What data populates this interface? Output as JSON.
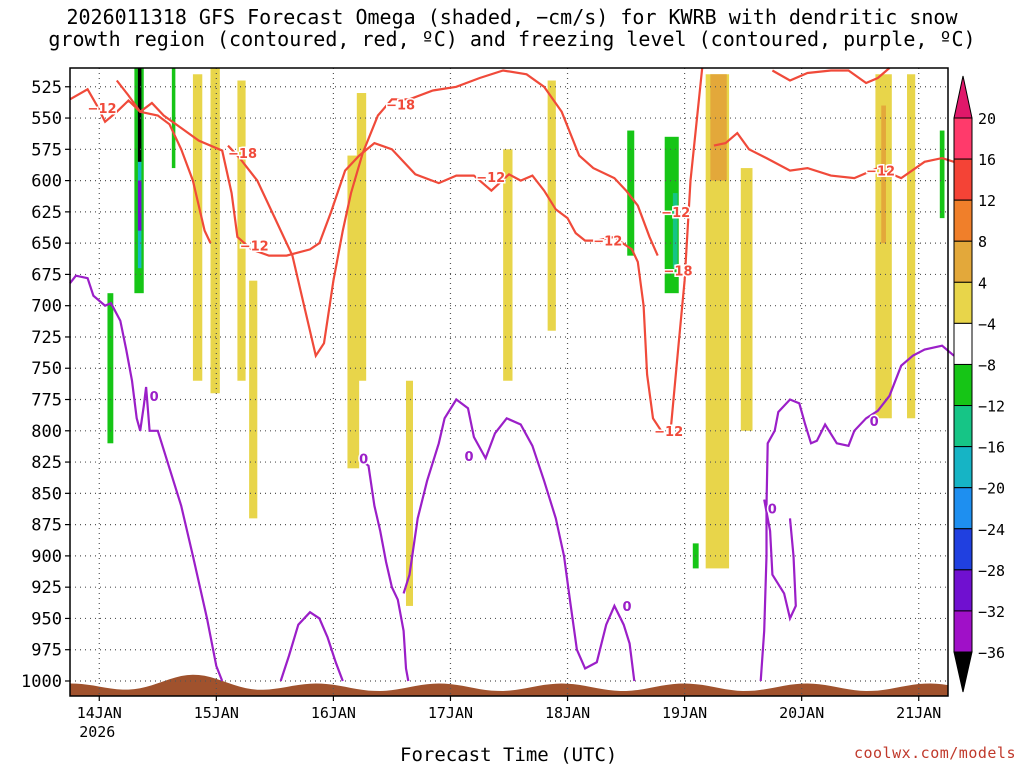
{
  "title_line1": "2026011318 GFS Forecast Omega (shaded, −cm/s) for KWRB with dendritic snow",
  "title_line2": "growth region (contoured, red, ºC) and freezing level (contoured, purple, ºC)",
  "credit": "coolwx.com/models",
  "chart_data": {
    "type": "heatmap",
    "xlabel": "Forecast Time (UTC)",
    "x_ticks": [
      {
        "t": 0.5,
        "label": "14JAN",
        "sub": "2026"
      },
      {
        "t": 1.5,
        "label": "15JAN",
        "sub": ""
      },
      {
        "t": 2.5,
        "label": "16JAN",
        "sub": ""
      },
      {
        "t": 3.5,
        "label": "17JAN",
        "sub": ""
      },
      {
        "t": 4.5,
        "label": "18JAN",
        "sub": ""
      },
      {
        "t": 5.5,
        "label": "19JAN",
        "sub": ""
      },
      {
        "t": 6.5,
        "label": "20JAN",
        "sub": ""
      },
      {
        "t": 7.5,
        "label": "21JAN",
        "sub": ""
      }
    ],
    "x_range_days": [
      0.25,
      7.75
    ],
    "y_ticks": [
      525,
      550,
      575,
      600,
      625,
      650,
      675,
      700,
      725,
      750,
      775,
      800,
      825,
      850,
      875,
      900,
      925,
      950,
      975,
      1000
    ],
    "y_range": [
      510,
      1012
    ],
    "colorbar": {
      "labels": [
        "20",
        "16",
        "12",
        "8",
        "4",
        "−4",
        "−8",
        "−12",
        "−16",
        "−20",
        "−24",
        "−28",
        "−32",
        "−36"
      ],
      "colors": [
        "#ff3a6b",
        "#f44336",
        "#f07f2a",
        "#e3a83a",
        "#e8d54a",
        "#ffffff",
        "#16c516",
        "#16c586",
        "#16b4c5",
        "#1e8ff0",
        "#2040e0",
        "#7010d0",
        "#a010c8",
        "#a8a8a8"
      ],
      "top_arrow_color": "#e0186a",
      "bottom_arrow_color": "#000000"
    },
    "shading": [
      {
        "color": "#e8d54a",
        "t0": 1.3,
        "t1": 1.38,
        "p0": 515,
        "p1": 760
      },
      {
        "color": "#e8d54a",
        "t0": 1.45,
        "t1": 1.53,
        "p0": 510,
        "p1": 770
      },
      {
        "color": "#e8d54a",
        "t0": 1.68,
        "t1": 1.75,
        "p0": 520,
        "p1": 760
      },
      {
        "color": "#e8d54a",
        "t0": 1.78,
        "t1": 1.85,
        "p0": 680,
        "p1": 870
      },
      {
        "color": "#e8d54a",
        "t0": 2.62,
        "t1": 2.72,
        "p0": 580,
        "p1": 830
      },
      {
        "color": "#e8d54a",
        "t0": 2.7,
        "t1": 2.78,
        "p0": 530,
        "p1": 760
      },
      {
        "color": "#e8d54a",
        "t0": 3.12,
        "t1": 3.18,
        "p0": 760,
        "p1": 940
      },
      {
        "color": "#e8d54a",
        "t0": 3.95,
        "t1": 4.03,
        "p0": 575,
        "p1": 760
      },
      {
        "color": "#e8d54a",
        "t0": 4.33,
        "t1": 4.4,
        "p0": 520,
        "p1": 720
      },
      {
        "color": "#e8d54a",
        "t0": 5.68,
        "t1": 5.88,
        "p0": 515,
        "p1": 910
      },
      {
        "color": "#e3a83a",
        "t0": 5.72,
        "t1": 5.86,
        "p0": 515,
        "p1": 600
      },
      {
        "color": "#e8d54a",
        "t0": 5.98,
        "t1": 6.08,
        "p0": 590,
        "p1": 800
      },
      {
        "color": "#e8d54a",
        "t0": 7.13,
        "t1": 7.27,
        "p0": 515,
        "p1": 790
      },
      {
        "color": "#e3a83a",
        "t0": 7.18,
        "t1": 7.22,
        "p0": 540,
        "p1": 650
      },
      {
        "color": "#e8d54a",
        "t0": 7.4,
        "t1": 7.47,
        "p0": 515,
        "p1": 790
      },
      {
        "color": "#16c516",
        "t0": 0.57,
        "t1": 0.62,
        "p0": 690,
        "p1": 810
      },
      {
        "color": "#16c516",
        "t0": 0.8,
        "t1": 0.88,
        "p0": 510,
        "p1": 690
      },
      {
        "color": "#16b4c5",
        "t0": 0.83,
        "t1": 0.86,
        "p0": 520,
        "p1": 670
      },
      {
        "color": "#7010d0",
        "t0": 0.83,
        "t1": 0.86,
        "p0": 600,
        "p1": 640
      },
      {
        "color": "#000000",
        "t0": 0.83,
        "t1": 0.86,
        "p0": 510,
        "p1": 585
      },
      {
        "color": "#16c516",
        "t0": 1.12,
        "t1": 1.15,
        "p0": 510,
        "p1": 590
      },
      {
        "color": "#16c516",
        "t0": 5.33,
        "t1": 5.45,
        "p0": 565,
        "p1": 690
      },
      {
        "color": "#16c586",
        "t0": 5.4,
        "t1": 5.44,
        "p0": 610,
        "p1": 670
      },
      {
        "color": "#16c516",
        "t0": 5.01,
        "t1": 5.07,
        "p0": 560,
        "p1": 660
      },
      {
        "color": "#16c516",
        "t0": 5.57,
        "t1": 5.62,
        "p0": 890,
        "p1": 910
      },
      {
        "color": "#16c516",
        "t0": 7.68,
        "t1": 7.72,
        "p0": 560,
        "p1": 630
      }
    ],
    "dgz_upper_label": "−18",
    "dgz_lower_label": "−12",
    "freezing_label": "0",
    "series": [
      {
        "id": "dgz12",
        "points": [
          [
            0.25,
            535
          ],
          [
            0.4,
            527
          ],
          [
            0.48,
            540
          ],
          [
            0.55,
            553
          ],
          [
            0.65,
            545
          ],
          [
            0.75,
            536
          ],
          [
            0.85,
            545
          ],
          [
            0.95,
            538
          ],
          [
            1.05,
            548
          ],
          [
            1.2,
            558
          ],
          [
            1.35,
            568
          ],
          [
            1.55,
            576
          ],
          [
            1.63,
            610
          ],
          [
            1.68,
            645
          ],
          [
            1.8,
            655
          ],
          [
            1.95,
            660
          ],
          [
            2.1,
            660
          ],
          [
            2.3,
            655
          ],
          [
            2.38,
            650
          ],
          [
            2.48,
            625
          ],
          [
            2.6,
            592
          ],
          [
            2.72,
            580
          ],
          [
            2.85,
            570
          ],
          [
            3.0,
            575
          ],
          [
            3.2,
            595
          ],
          [
            3.4,
            602
          ],
          [
            3.55,
            596
          ],
          [
            3.7,
            596
          ],
          [
            3.85,
            608
          ],
          [
            4.0,
            595
          ],
          [
            4.1,
            600
          ],
          [
            4.2,
            596
          ],
          [
            4.3,
            608
          ],
          [
            4.4,
            623
          ],
          [
            4.5,
            630
          ],
          [
            4.57,
            642
          ],
          [
            4.65,
            648
          ],
          [
            4.75,
            648
          ],
          [
            4.9,
            645
          ],
          [
            4.97,
            650
          ],
          [
            5.05,
            655
          ],
          [
            5.1,
            665
          ],
          [
            5.15,
            700
          ],
          [
            5.18,
            755
          ],
          [
            5.23,
            790
          ],
          [
            5.3,
            800
          ]
        ]
      },
      {
        "id": "dgz18",
        "points": [
          [
            0.65,
            520
          ],
          [
            0.75,
            532
          ],
          [
            0.85,
            545
          ],
          [
            1.0,
            548
          ],
          [
            1.1,
            555
          ],
          [
            1.2,
            575
          ],
          [
            1.3,
            600
          ],
          [
            1.4,
            640
          ],
          [
            1.45,
            650
          ]
        ]
      },
      {
        "id": "dgz18b",
        "points": [
          [
            1.6,
            572
          ],
          [
            1.7,
            582
          ],
          [
            1.85,
            600
          ],
          [
            2.0,
            630
          ],
          [
            2.15,
            660
          ],
          [
            2.25,
            700
          ],
          [
            2.35,
            740
          ],
          [
            2.42,
            730
          ],
          [
            2.5,
            680
          ],
          [
            2.58,
            640
          ],
          [
            2.65,
            610
          ],
          [
            2.75,
            578
          ],
          [
            2.88,
            548
          ],
          [
            3.0,
            535
          ],
          [
            3.15,
            535
          ],
          [
            3.35,
            528
          ],
          [
            3.55,
            525
          ],
          [
            3.75,
            518
          ],
          [
            3.95,
            512
          ],
          [
            4.15,
            515
          ],
          [
            4.3,
            525
          ],
          [
            4.45,
            545
          ],
          [
            4.6,
            580
          ],
          [
            4.72,
            590
          ],
          [
            4.9,
            598
          ],
          [
            5.0,
            608
          ],
          [
            5.1,
            620
          ],
          [
            5.2,
            645
          ],
          [
            5.27,
            660
          ]
        ]
      },
      {
        "id": "dgz12c",
        "points": [
          [
            5.38,
            800
          ],
          [
            5.45,
            730
          ],
          [
            5.5,
            680
          ],
          [
            5.55,
            600
          ],
          [
            5.65,
            510
          ]
        ]
      },
      {
        "id": "dgz12d",
        "points": [
          [
            5.75,
            572
          ],
          [
            5.85,
            570
          ],
          [
            5.95,
            562
          ],
          [
            6.05,
            575
          ],
          [
            6.2,
            582
          ],
          [
            6.4,
            592
          ],
          [
            6.55,
            590
          ],
          [
            6.75,
            596
          ],
          [
            6.95,
            598
          ],
          [
            7.15,
            590
          ],
          [
            7.35,
            598
          ],
          [
            7.55,
            585
          ],
          [
            7.7,
            582
          ],
          [
            7.8,
            585
          ]
        ]
      },
      {
        "id": "dgzTopRight",
        "points": [
          [
            6.25,
            512
          ],
          [
            6.4,
            520
          ],
          [
            6.55,
            514
          ],
          [
            6.75,
            512
          ],
          [
            6.9,
            512
          ],
          [
            7.05,
            522
          ],
          [
            7.15,
            518
          ],
          [
            7.25,
            510
          ]
        ]
      },
      {
        "id": "frz0",
        "points": [
          [
            0.25,
            682
          ],
          [
            0.3,
            676
          ],
          [
            0.4,
            678
          ],
          [
            0.45,
            692
          ],
          [
            0.55,
            700
          ],
          [
            0.6,
            698
          ],
          [
            0.68,
            712
          ],
          [
            0.73,
            735
          ],
          [
            0.78,
            760
          ],
          [
            0.82,
            790
          ],
          [
            0.85,
            800
          ],
          [
            0.88,
            780
          ],
          [
            0.9,
            765
          ],
          [
            0.93,
            800
          ],
          [
            1.0,
            800
          ],
          [
            1.1,
            830
          ],
          [
            1.2,
            860
          ],
          [
            1.3,
            900
          ],
          [
            1.42,
            950
          ],
          [
            1.5,
            988
          ],
          [
            1.55,
            1000
          ]
        ]
      },
      {
        "id": "frz0b",
        "points": [
          [
            2.05,
            1000
          ],
          [
            2.12,
            980
          ],
          [
            2.2,
            955
          ],
          [
            2.3,
            945
          ],
          [
            2.38,
            950
          ],
          [
            2.45,
            965
          ],
          [
            2.52,
            985
          ],
          [
            2.58,
            1000
          ]
        ]
      },
      {
        "id": "frz0c",
        "points": [
          [
            2.72,
            822
          ],
          [
            2.8,
            828
          ],
          [
            2.85,
            860
          ],
          [
            2.9,
            880
          ],
          [
            2.95,
            905
          ],
          [
            3.0,
            925
          ],
          [
            3.05,
            935
          ],
          [
            3.1,
            960
          ],
          [
            3.12,
            990
          ],
          [
            3.14,
            1000
          ]
        ]
      },
      {
        "id": "frz0d",
        "points": [
          [
            3.1,
            930
          ],
          [
            3.15,
            915
          ],
          [
            3.22,
            870
          ],
          [
            3.3,
            840
          ],
          [
            3.4,
            810
          ],
          [
            3.45,
            790
          ],
          [
            3.55,
            775
          ],
          [
            3.65,
            782
          ],
          [
            3.7,
            805
          ],
          [
            3.8,
            822
          ],
          [
            3.88,
            802
          ],
          [
            3.98,
            790
          ],
          [
            4.1,
            795
          ],
          [
            4.2,
            812
          ],
          [
            4.3,
            840
          ],
          [
            4.4,
            870
          ],
          [
            4.47,
            900
          ],
          [
            4.52,
            935
          ],
          [
            4.58,
            975
          ],
          [
            4.65,
            990
          ],
          [
            4.75,
            985
          ],
          [
            4.83,
            955
          ],
          [
            4.9,
            940
          ],
          [
            4.98,
            955
          ],
          [
            5.03,
            970
          ],
          [
            5.07,
            1000
          ]
        ]
      },
      {
        "id": "frz0e",
        "points": [
          [
            6.15,
            1000
          ],
          [
            6.18,
            960
          ],
          [
            6.2,
            900
          ],
          [
            6.2,
            860
          ],
          [
            6.21,
            810
          ],
          [
            6.27,
            800
          ],
          [
            6.3,
            785
          ],
          [
            6.4,
            775
          ],
          [
            6.48,
            778
          ],
          [
            6.53,
            795
          ],
          [
            6.58,
            810
          ],
          [
            6.63,
            808
          ],
          [
            6.7,
            795
          ],
          [
            6.8,
            810
          ],
          [
            6.9,
            812
          ],
          [
            6.95,
            800
          ],
          [
            7.05,
            790
          ],
          [
            7.15,
            784
          ],
          [
            7.25,
            772
          ],
          [
            7.35,
            748
          ],
          [
            7.45,
            740
          ],
          [
            7.55,
            735
          ],
          [
            7.7,
            732
          ],
          [
            7.8,
            740
          ]
        ]
      },
      {
        "id": "frz0f",
        "points": [
          [
            6.4,
            870
          ],
          [
            6.43,
            900
          ],
          [
            6.45,
            940
          ],
          [
            6.4,
            950
          ],
          [
            6.35,
            930
          ],
          [
            6.25,
            915
          ],
          [
            6.23,
            880
          ],
          [
            6.18,
            855
          ]
        ]
      }
    ],
    "label_marks": [
      {
        "text": "−12",
        "t": 0.4,
        "p": 542
      },
      {
        "text": "−12",
        "t": 1.7,
        "p": 652
      },
      {
        "text": "−18",
        "t": 1.6,
        "p": 578
      },
      {
        "text": "−18",
        "t": 2.95,
        "p": 539
      },
      {
        "text": "−12",
        "t": 3.72,
        "p": 597
      },
      {
        "text": "−12",
        "t": 4.72,
        "p": 648
      },
      {
        "text": "−12",
        "t": 5.3,
        "p": 625
      },
      {
        "text": "−18",
        "t": 5.32,
        "p": 672
      },
      {
        "text": "−12",
        "t": 5.24,
        "p": 800
      },
      {
        "text": "−12",
        "t": 7.05,
        "p": 592
      },
      {
        "text": "0",
        "t": 0.93,
        "p": 772
      },
      {
        "text": "0",
        "t": 2.72,
        "p": 822
      },
      {
        "text": "0",
        "t": 3.62,
        "p": 820
      },
      {
        "text": "0",
        "t": 4.97,
        "p": 940
      },
      {
        "text": "0",
        "t": 6.21,
        "p": 862
      },
      {
        "text": "0",
        "t": 7.08,
        "p": 792
      }
    ],
    "grid": "dotted"
  }
}
